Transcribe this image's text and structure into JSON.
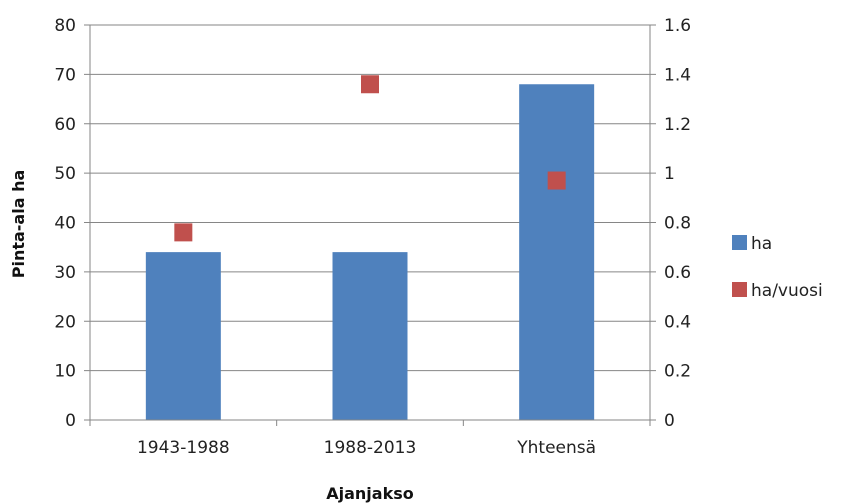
{
  "chart_data": {
    "type": "bar",
    "categories": [
      "1943-1988",
      "1988-2013",
      "Yhteensä"
    ],
    "series": [
      {
        "name": "ha",
        "type": "bar",
        "axis": "left",
        "color": "#4F81BD",
        "values": [
          34,
          34,
          68
        ]
      },
      {
        "name": "ha/vuosi",
        "type": "scatter",
        "axis": "right",
        "color": "#C0504D",
        "values": [
          0.76,
          1.36,
          0.97
        ]
      }
    ],
    "xlabel": "Ajanjakso",
    "ylabel": "Pinta-ala ha",
    "ylim": [
      0,
      80
    ],
    "y2lim": [
      0,
      1.6
    ],
    "yticks": [
      "0",
      "10",
      "20",
      "30",
      "40",
      "50",
      "60",
      "70",
      "80"
    ],
    "y2ticks": [
      "0",
      "0.2",
      "0.4",
      "0.6",
      "0.8",
      "1",
      "1.2",
      "1.4",
      "1.6"
    ],
    "grid": true,
    "legend_position": "right"
  }
}
